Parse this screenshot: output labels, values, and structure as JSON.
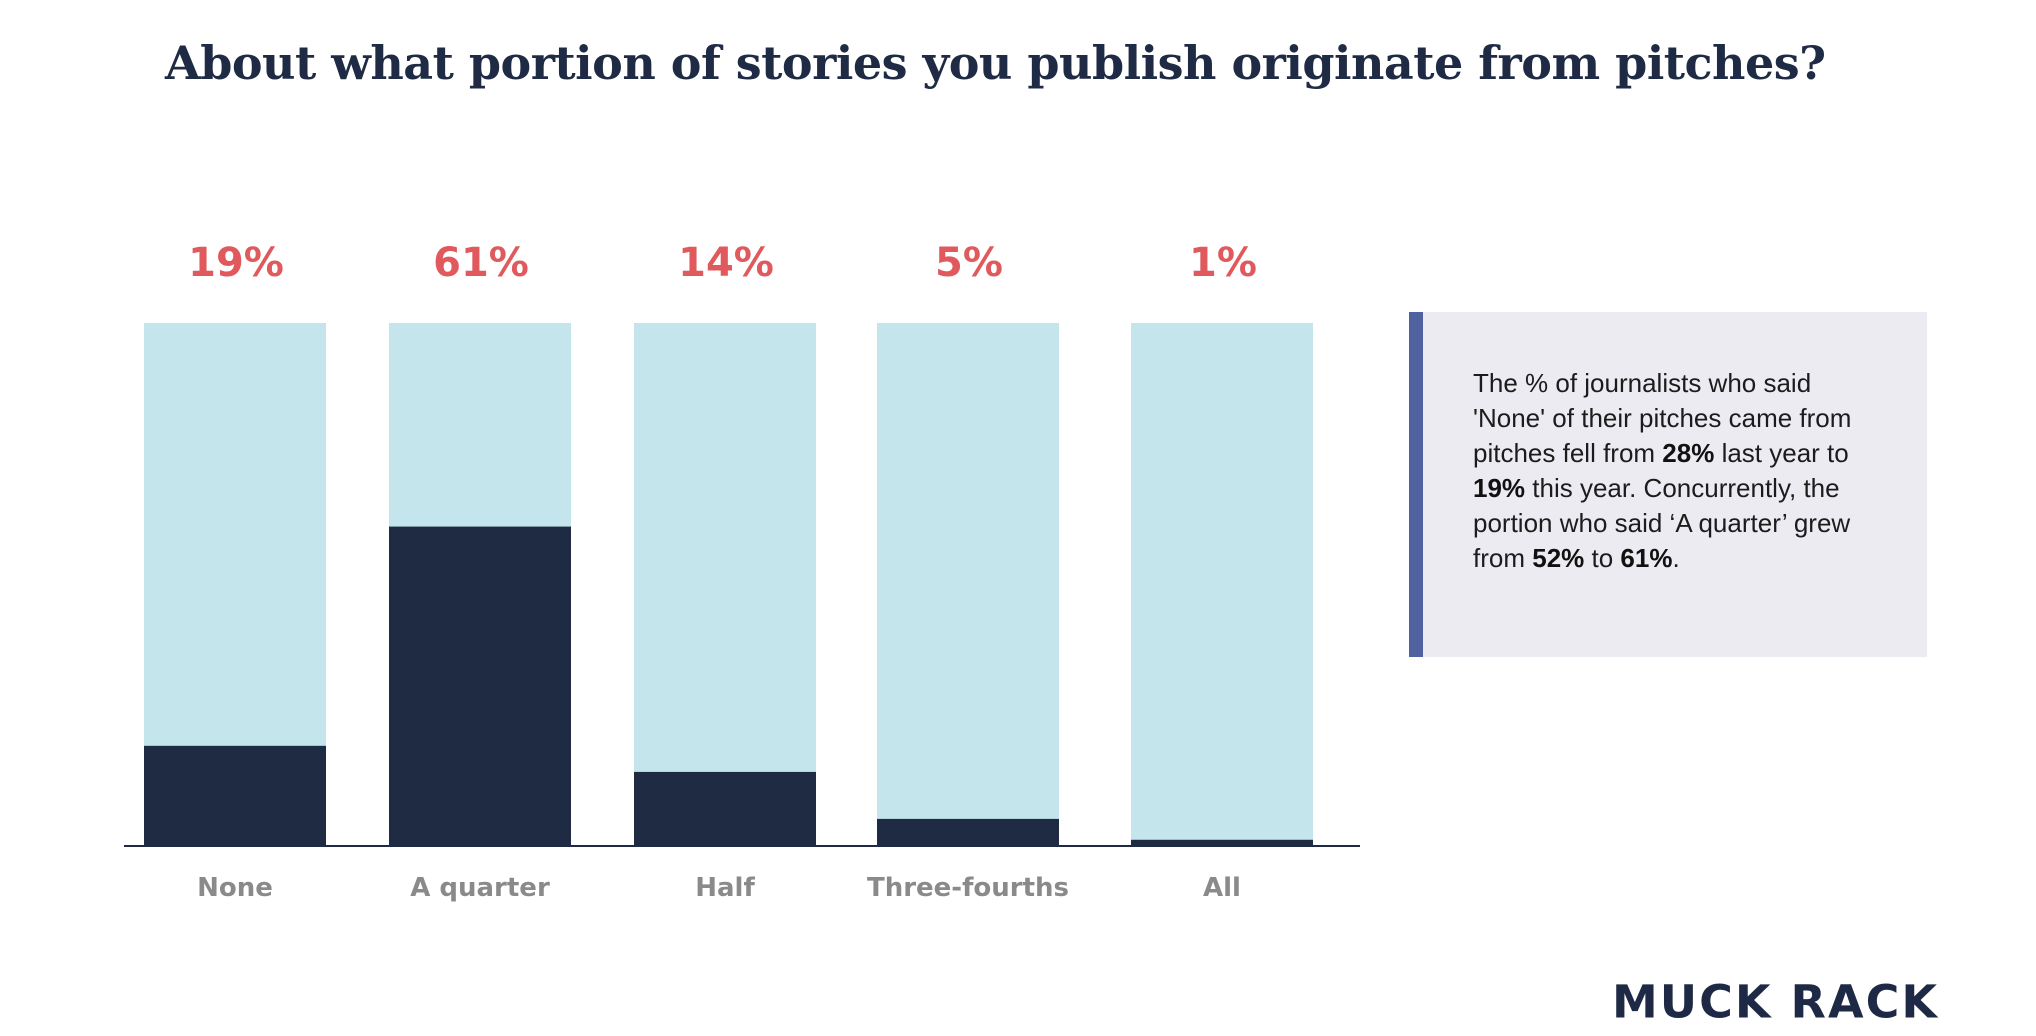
{
  "chart_data": {
    "type": "bar",
    "title": "About what portion of stories you publish originate from pitches?",
    "categories": [
      "None",
      "A quarter",
      "Half",
      "Three-fourths",
      "All"
    ],
    "values": [
      19,
      61,
      14,
      5,
      1
    ],
    "value_labels": [
      "19%",
      "61%",
      "14%",
      "5%",
      "1%"
    ],
    "ylim": [
      0,
      100
    ],
    "grid": false,
    "colors": {
      "bar": "#1f2b42",
      "track": "#c5e5ec",
      "value_label": "#e0595d",
      "category_label": "#8a8a8a",
      "axis": "#1f2b42"
    }
  },
  "callout": {
    "segments": [
      {
        "text": "The % of journalists who said 'None' of their pitches came from pitches fell from ",
        "bold": false
      },
      {
        "text": "28%",
        "bold": true
      },
      {
        "text": " last year to ",
        "bold": false
      },
      {
        "text": "19%",
        "bold": true
      },
      {
        "text": " this year. Concurrently, the portion who said ‘A quarter’ grew from ",
        "bold": false
      },
      {
        "text": "52%",
        "bold": true
      },
      {
        "text": " to ",
        "bold": false
      },
      {
        "text": "61%",
        "bold": true
      },
      {
        "text": ".",
        "bold": false
      }
    ],
    "accent_color": "#5063a0",
    "background_color": "#ecebf2"
  },
  "brand": {
    "logo_text": "MUCK RACK",
    "color": "#1e2a45"
  }
}
